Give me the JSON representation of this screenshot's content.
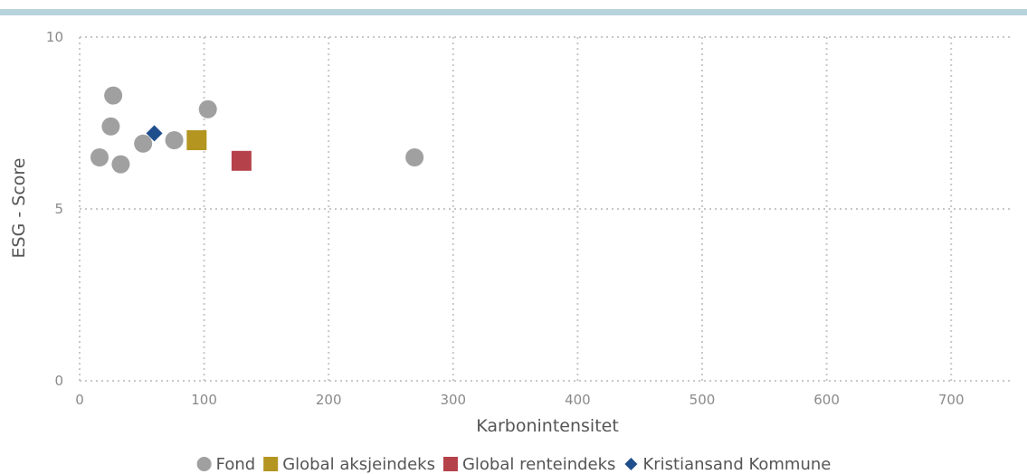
{
  "chart_data": {
    "type": "scatter",
    "title": "",
    "xlabel": "Karbonintensitet",
    "ylabel": "ESG - Score",
    "xlim": [
      0,
      750
    ],
    "ylim": [
      0,
      10
    ],
    "x_ticks": [
      0,
      100,
      200,
      300,
      400,
      500,
      600,
      700
    ],
    "y_ticks": [
      0,
      5,
      10
    ],
    "grid": true,
    "legend_position": "bottom",
    "series": [
      {
        "name": "Fond",
        "marker": "circle",
        "color": "#a0a0a0",
        "points": [
          {
            "x": 16,
            "y": 6.5
          },
          {
            "x": 25,
            "y": 7.4
          },
          {
            "x": 27,
            "y": 8.3
          },
          {
            "x": 33,
            "y": 6.3
          },
          {
            "x": 51,
            "y": 6.9
          },
          {
            "x": 76,
            "y": 7.0
          },
          {
            "x": 103,
            "y": 7.9
          },
          {
            "x": 269,
            "y": 6.5
          }
        ]
      },
      {
        "name": "Global aksjeindeks",
        "marker": "square",
        "color": "#b39520",
        "points": [
          {
            "x": 94,
            "y": 7.0
          }
        ]
      },
      {
        "name": "Global renteindeks",
        "marker": "square",
        "color": "#b5424b",
        "points": [
          {
            "x": 130,
            "y": 6.4
          }
        ]
      },
      {
        "name": "Kristiansand Kommune",
        "marker": "diamond",
        "color": "#1f4e8c",
        "points": [
          {
            "x": 60,
            "y": 7.2
          }
        ]
      }
    ]
  },
  "header_bar_color": "#b7d3dc",
  "grid_color": "#c8c8c8"
}
